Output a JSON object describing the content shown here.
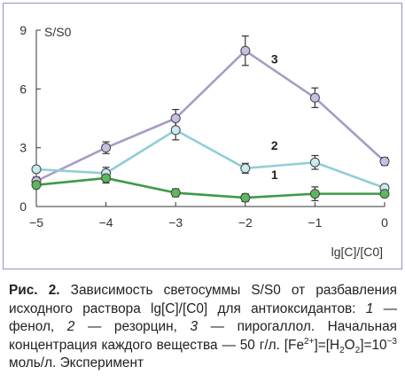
{
  "chart_data": {
    "type": "line",
    "ylabel": "S/S0",
    "xlabel": "lg[C]/[C0]",
    "xlim": [
      -5,
      0
    ],
    "ylim": [
      0,
      9
    ],
    "x_ticks": [
      "−5",
      "−4",
      "−3",
      "−2",
      "−1",
      "0"
    ],
    "y_ticks": [
      "0",
      "3",
      "6",
      "9"
    ],
    "grid": false,
    "legend": "numeric labels beside curves",
    "series": [
      {
        "name": "3",
        "color": "#a99bc7",
        "marker_fill": "#c8bde3",
        "points": [
          {
            "x": -5,
            "y": 1.3,
            "err": 0.2
          },
          {
            "x": -4,
            "y": 3.0,
            "err": 0.3
          },
          {
            "x": -3,
            "y": 4.5,
            "err": 0.45
          },
          {
            "x": -2,
            "y": 7.95,
            "err": 0.75
          },
          {
            "x": -1,
            "y": 5.55,
            "err": 0.5
          },
          {
            "x": 0,
            "y": 2.3,
            "err": 0.2
          }
        ]
      },
      {
        "name": "2",
        "color": "#8fcfd6",
        "marker_fill": "#c5ecef",
        "points": [
          {
            "x": -5,
            "y": 1.9,
            "err": 0.15
          },
          {
            "x": -4,
            "y": 1.7,
            "err": 0.3
          },
          {
            "x": -3,
            "y": 3.9,
            "err": 0.5
          },
          {
            "x": -2,
            "y": 1.95,
            "err": 0.25
          },
          {
            "x": -1,
            "y": 2.25,
            "err": 0.35
          },
          {
            "x": 0,
            "y": 0.95,
            "err": 0.15
          }
        ]
      },
      {
        "name": "1",
        "color": "#3e9a4a",
        "marker_fill": "#5cb85c",
        "points": [
          {
            "x": -5,
            "y": 1.1,
            "err": 0.15
          },
          {
            "x": -4,
            "y": 1.45,
            "err": 0.25
          },
          {
            "x": -3,
            "y": 0.7,
            "err": 0.2
          },
          {
            "x": -2,
            "y": 0.45,
            "err": 0.2
          },
          {
            "x": -1,
            "y": 0.65,
            "err": 0.35
          },
          {
            "x": 0,
            "y": 0.65,
            "err": 0.15
          }
        ]
      }
    ],
    "curve_labels": [
      {
        "text": "3",
        "x": -1.58,
        "y": 7.3
      },
      {
        "text": "2",
        "x": -1.58,
        "y": 2.9
      },
      {
        "text": "1",
        "x": -1.58,
        "y": 1.4
      }
    ]
  },
  "caption": {
    "label": "Рис. 2.",
    "text_1": " Зависимость светосуммы S/S0 от разбавления исходного раствора lg[C]/[C0] для антиоксидантов: ",
    "item_1_num": "1",
    "item_1_text": " — фенол, ",
    "item_2_num": "2",
    "item_2_text": " — резорцин, ",
    "item_3_num": "3",
    "item_3_text": " — пирогаллол. Начальная концентрация каждого вещества — 50 г/л. [Fe",
    "fe_charge": "2+",
    "text_2": "]=[H",
    "h_sub": "2",
    "o_part": "O",
    "o_sub": "2",
    "text_3": "]=10",
    "exponent": "−3",
    "text_4": " моль/л. Эксперимент"
  }
}
